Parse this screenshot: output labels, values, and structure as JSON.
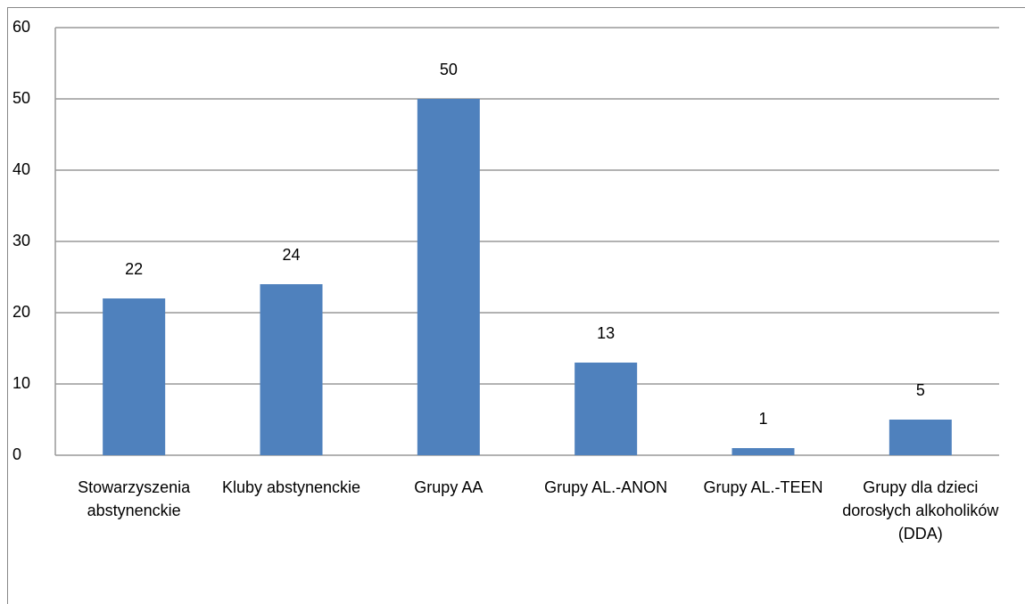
{
  "chart_data": {
    "type": "bar",
    "categories": [
      "Stowarzyszenia abstynenckie",
      "Kluby abstynenckie",
      "Grupy AA",
      "Grupy AL.-ANON",
      "Grupy AL.-TEEN",
      "Grupy dla dzieci dorosłych alkoholików (DDA)"
    ],
    "values": [
      22,
      24,
      50,
      13,
      1,
      5
    ],
    "color": "#4f81bd",
    "ylim": [
      0,
      60
    ],
    "yticks": [
      0,
      10,
      20,
      30,
      40,
      50,
      60
    ],
    "grid": true
  }
}
